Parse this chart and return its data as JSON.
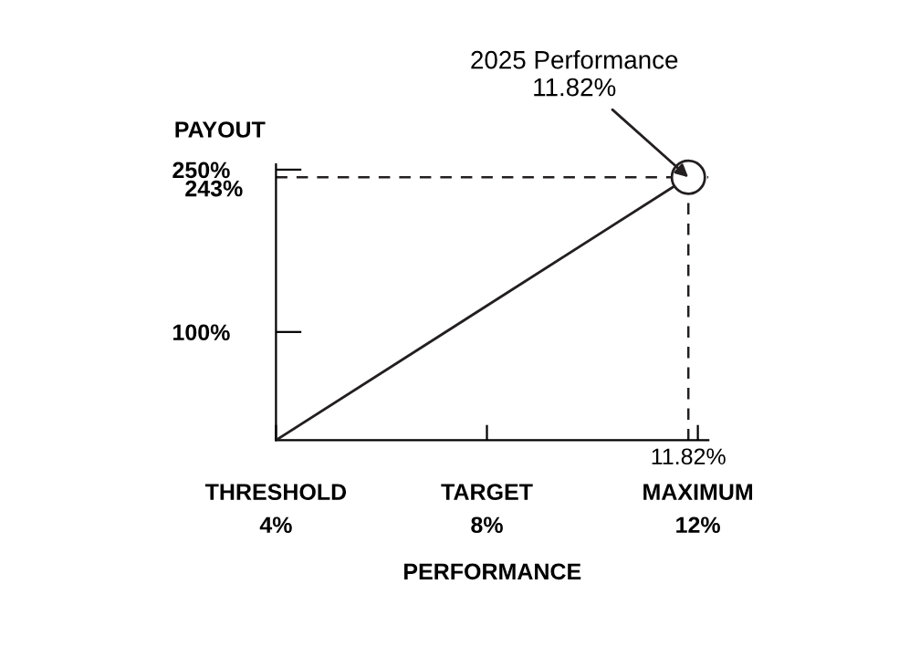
{
  "chart_data": {
    "type": "line",
    "xlabel": "PERFORMANCE",
    "ylabel": "PAYOUT",
    "series": [
      {
        "color": "#231f20",
        "values": [
          0,
          243
        ],
        "marker": "none"
      },
      {
        "type": "scatter",
        "color": "#231f20",
        "values": [
          null,
          243
        ],
        "marker": "circle"
      }
    ],
    "x": [
      4,
      11.82
    ],
    "xlim": [
      4,
      12.2
    ],
    "ylim": [
      0,
      255
    ],
    "xticks": [
      {
        "value": 4,
        "label": "4%"
      },
      {
        "value": 8,
        "label": "8%"
      },
      {
        "value": 12,
        "label": "12%"
      }
    ],
    "yticks": [
      {
        "value": 100,
        "label": "100%"
      },
      {
        "value": 250,
        "label": "250%"
      }
    ],
    "ref_lines": [
      {
        "axis": "y",
        "value": 243,
        "label": "243%",
        "line_style": "dashed",
        "color": "#231f20"
      },
      {
        "axis": "x",
        "value": 11.82,
        "label": "11.82%",
        "line_style": "dashed",
        "color": "#231f20"
      }
    ],
    "annotations": [
      {
        "text": "2025 Performance\n11.82%",
        "x": 11.82,
        "y": 243
      },
      "THRESHOLD",
      "TARGET",
      "MAXIMUM"
    ],
    "grid": false,
    "legend": false
  }
}
